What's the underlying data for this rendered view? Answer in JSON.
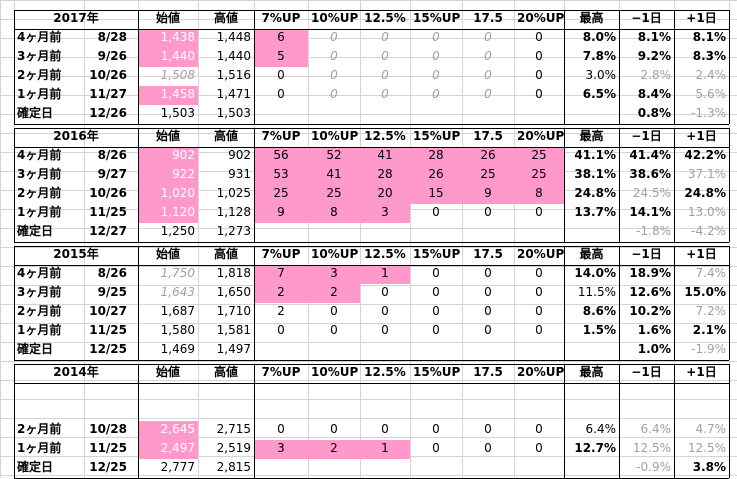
{
  "colors": {
    "pink": "#ff99cc",
    "grid": "#d4d4d4",
    "gray_text": "#a0a0a0",
    "text": "#000000"
  },
  "headers": {
    "open": "始値",
    "high": "高値",
    "p7": "7%UP",
    "p10": "10%UP",
    "p125": "12.5%",
    "p15": "15%UP",
    "p175": "17.5",
    "p20": "20%UP",
    "max": "最高",
    "minus1": "−1日",
    "plus1": "+1日"
  },
  "tables": [
    {
      "year": "2017年",
      "rows": [
        {
          "label": "4ヶ月前",
          "date": "8/28",
          "open": "1,438",
          "high": "1,448",
          "p7": "6",
          "p10": "0",
          "p125": "0",
          "p15": "0",
          "p175": "0",
          "p20": "0",
          "max": "8.0%",
          "minus1": "8.1%",
          "plus1": "8.1%"
        },
        {
          "label": "3ヶ月前",
          "date": "9/26",
          "open": "1,440",
          "high": "1,440",
          "p7": "5",
          "p10": "0",
          "p125": "0",
          "p15": "0",
          "p175": "0",
          "p20": "0",
          "max": "7.8%",
          "minus1": "9.2%",
          "plus1": "8.3%"
        },
        {
          "label": "2ヶ月前",
          "date": "10/26",
          "open": "1,508",
          "high": "1,516",
          "p7": "0",
          "p10": "0",
          "p125": "0",
          "p15": "0",
          "p175": "0",
          "p20": "0",
          "max": "3.0%",
          "minus1": "2.8%",
          "plus1": "2.4%"
        },
        {
          "label": "1ヶ月前",
          "date": "11/27",
          "open": "1,458",
          "high": "1,471",
          "p7": "0",
          "p10": "0",
          "p125": "0",
          "p15": "0",
          "p175": "0",
          "p20": "0",
          "max": "6.5%",
          "minus1": "8.4%",
          "plus1": "5.6%"
        },
        {
          "label": "確定日",
          "date": "12/26",
          "open": "1,503",
          "high": "1,503",
          "p7": "",
          "p10": "",
          "p125": "",
          "p15": "",
          "p175": "",
          "p20": "",
          "max": "",
          "minus1": "0.8%",
          "plus1": "-1.3%"
        }
      ]
    },
    {
      "year": "2016年",
      "rows": [
        {
          "label": "4ヶ月前",
          "date": "8/26",
          "open": "902",
          "high": "902",
          "p7": "56",
          "p10": "52",
          "p125": "41",
          "p15": "28",
          "p175": "26",
          "p20": "25",
          "max": "41.1%",
          "minus1": "41.4%",
          "plus1": "42.2%"
        },
        {
          "label": "3ヶ月前",
          "date": "9/27",
          "open": "922",
          "high": "931",
          "p7": "53",
          "p10": "41",
          "p125": "28",
          "p15": "26",
          "p175": "25",
          "p20": "25",
          "max": "38.1%",
          "minus1": "38.6%",
          "plus1": "37.1%"
        },
        {
          "label": "2ヶ月前",
          "date": "10/26",
          "open": "1,020",
          "high": "1,025",
          "p7": "25",
          "p10": "25",
          "p125": "20",
          "p15": "15",
          "p175": "9",
          "p20": "8",
          "max": "24.8%",
          "minus1": "24.5%",
          "plus1": "24.8%"
        },
        {
          "label": "1ヶ月前",
          "date": "11/25",
          "open": "1,120",
          "high": "1,128",
          "p7": "9",
          "p10": "8",
          "p125": "3",
          "p15": "0",
          "p175": "0",
          "p20": "0",
          "max": "13.7%",
          "minus1": "14.1%",
          "plus1": "13.0%"
        },
        {
          "label": "確定日",
          "date": "12/27",
          "open": "1,250",
          "high": "1,273",
          "p7": "",
          "p10": "",
          "p125": "",
          "p15": "",
          "p175": "",
          "p20": "",
          "max": "",
          "minus1": "-1.8%",
          "plus1": "-4.2%"
        }
      ]
    },
    {
      "year": "2015年",
      "rows": [
        {
          "label": "4ヶ月前",
          "date": "8/26",
          "open": "1,750",
          "high": "1,818",
          "p7": "7",
          "p10": "3",
          "p125": "1",
          "p15": "0",
          "p175": "0",
          "p20": "0",
          "max": "14.0%",
          "minus1": "18.9%",
          "plus1": "7.4%"
        },
        {
          "label": "3ヶ月前",
          "date": "9/25",
          "open": "1,643",
          "high": "1,650",
          "p7": "2",
          "p10": "2",
          "p125": "0",
          "p15": "0",
          "p175": "0",
          "p20": "0",
          "max": "11.5%",
          "minus1": "12.6%",
          "plus1": "15.0%"
        },
        {
          "label": "2ヶ月前",
          "date": "10/27",
          "open": "1,687",
          "high": "1,710",
          "p7": "2",
          "p10": "0",
          "p125": "0",
          "p15": "0",
          "p175": "0",
          "p20": "0",
          "max": "8.6%",
          "minus1": "10.2%",
          "plus1": "7.2%"
        },
        {
          "label": "1ヶ月前",
          "date": "11/25",
          "open": "1,580",
          "high": "1,581",
          "p7": "0",
          "p10": "0",
          "p125": "0",
          "p15": "0",
          "p175": "0",
          "p20": "0",
          "max": "1.5%",
          "minus1": "1.6%",
          "plus1": "2.1%"
        },
        {
          "label": "確定日",
          "date": "12/25",
          "open": "1,469",
          "high": "1,497",
          "p7": "",
          "p10": "",
          "p125": "",
          "p15": "",
          "p175": "",
          "p20": "",
          "max": "",
          "minus1": "1.0%",
          "plus1": "-1.9%"
        }
      ]
    },
    {
      "year": "2014年",
      "rows": [
        {
          "label": "",
          "date": "",
          "open": "",
          "high": "",
          "p7": "",
          "p10": "",
          "p125": "",
          "p15": "",
          "p175": "",
          "p20": "",
          "max": "",
          "minus1": "",
          "plus1": ""
        },
        {
          "label": "",
          "date": "",
          "open": "",
          "high": "",
          "p7": "",
          "p10": "",
          "p125": "",
          "p15": "",
          "p175": "",
          "p20": "",
          "max": "",
          "minus1": "",
          "plus1": ""
        },
        {
          "label": "2ヶ月前",
          "date": "10/28",
          "open": "2,645",
          "high": "2,715",
          "p7": "0",
          "p10": "0",
          "p125": "0",
          "p15": "0",
          "p175": "0",
          "p20": "0",
          "max": "6.4%",
          "minus1": "6.4%",
          "plus1": "4.7%"
        },
        {
          "label": "1ヶ月前",
          "date": "11/25",
          "open": "2,497",
          "high": "2,519",
          "p7": "3",
          "p10": "2",
          "p125": "1",
          "p15": "0",
          "p175": "0",
          "p20": "0",
          "max": "12.7%",
          "minus1": "12.5%",
          "plus1": "12.5%"
        },
        {
          "label": "確定日",
          "date": "12/25",
          "open": "2,777",
          "high": "2,815",
          "p7": "",
          "p10": "",
          "p125": "",
          "p15": "",
          "p175": "",
          "p20": "",
          "max": "",
          "minus1": "-0.9%",
          "plus1": "3.8%"
        }
      ]
    }
  ]
}
